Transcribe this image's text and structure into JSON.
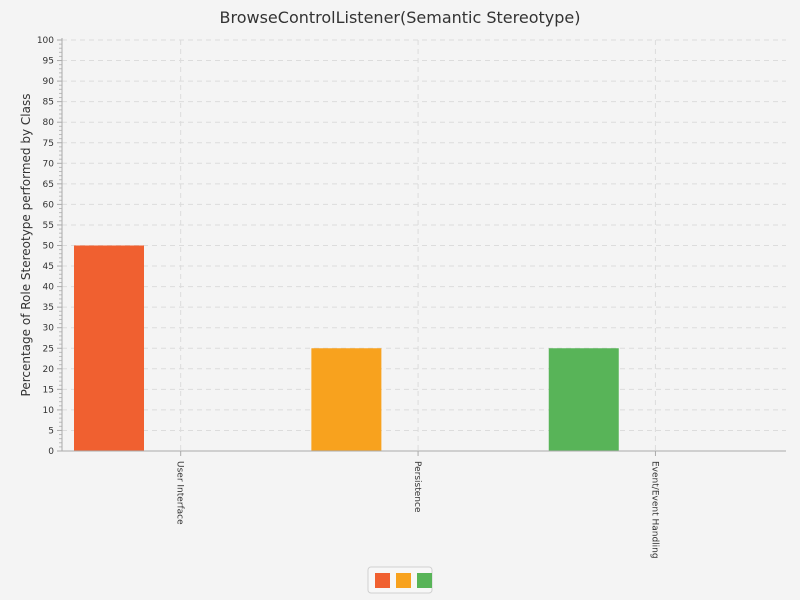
{
  "chart_data": {
    "type": "bar",
    "title": "BrowseControlListener(Semantic Stereotype)",
    "xlabel": "",
    "ylabel": "Percentage of Role Stereotype performed by Class",
    "ylim": [
      0,
      100
    ],
    "ytick_step": 5,
    "grid": true,
    "legend": "bottom",
    "categories": [
      "User Interface",
      "Persistence",
      "Event/Event Handling"
    ],
    "series": [
      {
        "values": [
          50,
          25,
          25
        ]
      }
    ],
    "bar_colors": [
      "#f06030",
      "#f8a21e",
      "#58b458"
    ]
  }
}
